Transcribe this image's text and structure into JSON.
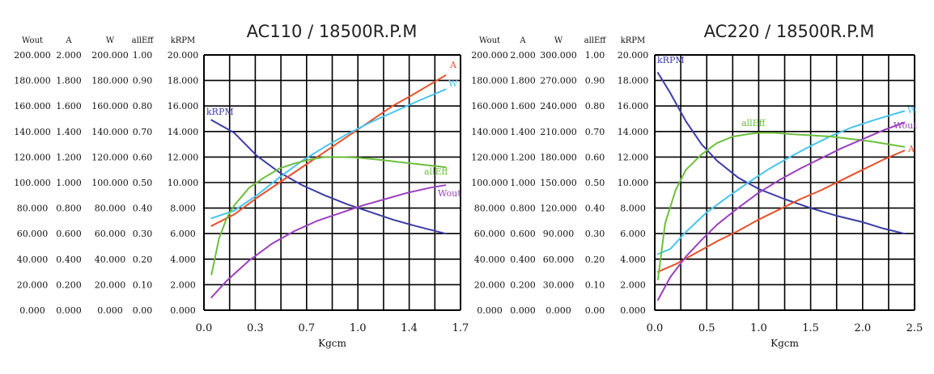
{
  "colors": {
    "A": "#e8502a",
    "W": "#48c4ee",
    "allEff": "#6cbf3c",
    "Wout": "#9b3fbf",
    "kRPM": "#3c3ca8",
    "grid": "#000000"
  },
  "chart_data": [
    {
      "type": "line",
      "title": "AC110 / 18500R.P.M",
      "xlabel": "Kgcm",
      "xlim": [
        0.0,
        1.7
      ],
      "x_ticks": [
        "0.0",
        "0.3",
        "0.7",
        "1.0",
        "1.4",
        "1.7"
      ],
      "grid": true,
      "grid_divisions": {
        "x": 10,
        "y": 10
      },
      "axes": [
        {
          "name": "Wout",
          "min": 0,
          "max": 200,
          "ticks": [
            "200.000",
            "180.000",
            "160.000",
            "140.000",
            "120.000",
            "100.000",
            "80.000",
            "60.000",
            "40.000",
            "20.000",
            "0.000"
          ]
        },
        {
          "name": "A",
          "min": 0,
          "max": 2,
          "ticks": [
            "2.000",
            "1.800",
            "1.600",
            "1.400",
            "1.200",
            "1.000",
            "0.800",
            "0.600",
            "0.400",
            "0.200",
            "0.000"
          ]
        },
        {
          "name": "W",
          "min": 0,
          "max": 200,
          "ticks": [
            "200.000",
            "180.000",
            "160.000",
            "140.000",
            "120.000",
            "100.000",
            "80.000",
            "60.000",
            "40.000",
            "20.000",
            "0.000"
          ]
        },
        {
          "name": "allEff",
          "min": 0,
          "max": 1,
          "ticks": [
            "1.00",
            "0.90",
            "0.80",
            "0.70",
            "0.60",
            "0.50",
            "0.40",
            "0.30",
            "0.20",
            "0.10",
            "0.00"
          ]
        },
        {
          "name": "kRPM",
          "min": 0,
          "max": 20,
          "ticks": [
            "20.000",
            "18.000",
            "16.000",
            "14.000",
            "12.000",
            "10.000",
            "8.000",
            "6.000",
            "4.000",
            "2.000",
            "0.000"
          ]
        }
      ],
      "series": [
        {
          "name": "kRPM",
          "axis": "kRPM",
          "x": [
            0.05,
            0.2,
            0.35,
            0.5,
            0.65,
            0.8,
            0.95,
            1.1,
            1.25,
            1.4,
            1.6
          ],
          "y": [
            14.9,
            13.9,
            12.1,
            10.8,
            9.8,
            9.0,
            8.3,
            7.7,
            7.1,
            6.6,
            6.0
          ]
        },
        {
          "name": "A",
          "axis": "A",
          "x": [
            0.05,
            0.2,
            0.35,
            0.5,
            0.65,
            0.8,
            0.95,
            1.1,
            1.25,
            1.4,
            1.6
          ],
          "y": [
            0.66,
            0.75,
            0.88,
            1.0,
            1.12,
            1.24,
            1.36,
            1.48,
            1.6,
            1.7,
            1.84
          ]
        },
        {
          "name": "W",
          "axis": "W",
          "x": [
            0.05,
            0.2,
            0.35,
            0.5,
            0.65,
            0.8,
            0.95,
            1.1,
            1.25,
            1.4,
            1.6
          ],
          "y": [
            72,
            78,
            90,
            104,
            117,
            128,
            138,
            147,
            155,
            163,
            173
          ]
        },
        {
          "name": "allEff",
          "axis": "allEff",
          "x": [
            0.05,
            0.1,
            0.15,
            0.2,
            0.3,
            0.4,
            0.5,
            0.6,
            0.7,
            0.8,
            0.9,
            1.0,
            1.1,
            1.2,
            1.3,
            1.45,
            1.6
          ],
          "y": [
            0.14,
            0.28,
            0.36,
            0.41,
            0.48,
            0.52,
            0.555,
            0.575,
            0.59,
            0.6,
            0.6,
            0.598,
            0.593,
            0.587,
            0.58,
            0.57,
            0.56
          ]
        },
        {
          "name": "Wout",
          "axis": "Wout",
          "x": [
            0.05,
            0.15,
            0.3,
            0.45,
            0.6,
            0.75,
            0.9,
            1.05,
            1.2,
            1.35,
            1.5,
            1.6
          ],
          "y": [
            10,
            23,
            39,
            52,
            62,
            70,
            76,
            82,
            87,
            92,
            96,
            98
          ]
        }
      ],
      "labels": [
        {
          "text": "kRPM",
          "series": "kRPM"
        },
        {
          "text": "A",
          "series": "A"
        },
        {
          "text": "W",
          "series": "W"
        },
        {
          "text": "allEff",
          "series": "allEff"
        },
        {
          "text": "Wout",
          "series": "Wout"
        }
      ]
    },
    {
      "type": "line",
      "title": "AC220 / 18500R.P.M",
      "xlabel": "Kgcm",
      "xlim": [
        0.0,
        2.5
      ],
      "x_ticks": [
        "0.0",
        "0.5",
        "1.0",
        "1.5",
        "2.0",
        "2.5"
      ],
      "grid": true,
      "grid_divisions": {
        "x": 10,
        "y": 10
      },
      "axes": [
        {
          "name": "Wout",
          "min": 0,
          "max": 200,
          "ticks": [
            "200.000",
            "180.000",
            "160.000",
            "140.000",
            "120.000",
            "100.000",
            "80.000",
            "60.000",
            "40.000",
            "20.000",
            "0.000"
          ]
        },
        {
          "name": "A",
          "min": 0,
          "max": 2,
          "ticks": [
            "2.000",
            "1.800",
            "1.600",
            "1.400",
            "1.200",
            "1.000",
            "0.800",
            "0.600",
            "0.400",
            "0.200",
            "0.000"
          ]
        },
        {
          "name": "W",
          "min": 0,
          "max": 300,
          "ticks": [
            "300.000",
            "270.000",
            "240.000",
            "210.000",
            "180.000",
            "150.000",
            "120.000",
            "90.000",
            "60.000",
            "30.000",
            "0.000"
          ]
        },
        {
          "name": "allEff",
          "min": 0,
          "max": 1,
          "ticks": [
            "1.00",
            "0.90",
            "0.80",
            "0.70",
            "0.60",
            "0.50",
            "0.40",
            "0.30",
            "0.20",
            "0.10",
            "0.00"
          ]
        },
        {
          "name": "kRPM",
          "min": 0,
          "max": 20,
          "ticks": [
            "20.000",
            "18.000",
            "16.000",
            "14.000",
            "12.000",
            "10.000",
            "8.000",
            "6.000",
            "4.000",
            "2.000",
            "0.000"
          ]
        }
      ],
      "series": [
        {
          "name": "kRPM",
          "axis": "kRPM",
          "x": [
            0.03,
            0.15,
            0.3,
            0.45,
            0.6,
            0.8,
            1.0,
            1.25,
            1.5,
            1.75,
            2.0,
            2.2,
            2.4
          ],
          "y": [
            18.6,
            17.0,
            14.8,
            13.0,
            11.7,
            10.4,
            9.5,
            8.7,
            8.0,
            7.4,
            6.9,
            6.4,
            6.0
          ]
        },
        {
          "name": "A",
          "axis": "A",
          "x": [
            0.03,
            0.2,
            0.4,
            0.6,
            0.8,
            1.0,
            1.2,
            1.4,
            1.6,
            1.8,
            2.0,
            2.2,
            2.4
          ],
          "y": [
            0.3,
            0.36,
            0.45,
            0.54,
            0.62,
            0.71,
            0.79,
            0.87,
            0.94,
            1.02,
            1.1,
            1.18,
            1.25
          ]
        },
        {
          "name": "W",
          "axis": "W",
          "x": [
            0.03,
            0.15,
            0.3,
            0.5,
            0.7,
            0.9,
            1.1,
            1.3,
            1.5,
            1.7,
            1.9,
            2.1,
            2.4
          ],
          "y": [
            66,
            72,
            92,
            115,
            133,
            150,
            166,
            180,
            193,
            205,
            215,
            223,
            234
          ]
        },
        {
          "name": "allEff",
          "axis": "allEff",
          "x": [
            0.03,
            0.1,
            0.2,
            0.3,
            0.45,
            0.6,
            0.75,
            0.9,
            1.0,
            1.15,
            1.3,
            1.5,
            1.7,
            1.9,
            2.1,
            2.25,
            2.4
          ],
          "y": [
            0.12,
            0.34,
            0.47,
            0.55,
            0.61,
            0.655,
            0.68,
            0.69,
            0.695,
            0.695,
            0.69,
            0.685,
            0.68,
            0.67,
            0.66,
            0.65,
            0.64
          ]
        },
        {
          "name": "Wout",
          "axis": "Wout",
          "x": [
            0.03,
            0.15,
            0.3,
            0.45,
            0.6,
            0.8,
            1.0,
            1.2,
            1.4,
            1.6,
            1.8,
            2.0,
            2.2,
            2.4
          ],
          "y": [
            8,
            26,
            42,
            55,
            67,
            80,
            92,
            102,
            111,
            119,
            127,
            134,
            141,
            147
          ]
        }
      ],
      "labels": [
        {
          "text": "kRPM",
          "series": "kRPM"
        },
        {
          "text": "A",
          "series": "A"
        },
        {
          "text": "W",
          "series": "W"
        },
        {
          "text": "allEff",
          "series": "allEff"
        },
        {
          "text": "Wout",
          "series": "Wout"
        }
      ]
    }
  ]
}
